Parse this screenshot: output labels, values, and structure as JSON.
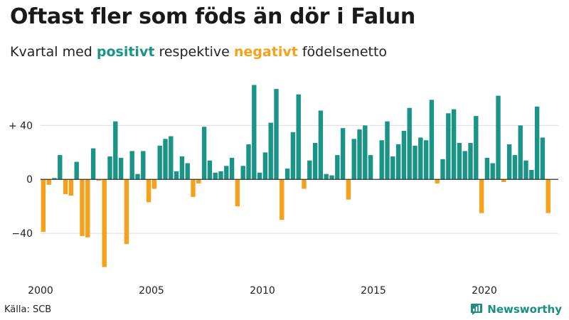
{
  "header": {
    "title": "Oftast fler som föds än dör i Falun",
    "subtitle_pre": "Kvartal med ",
    "subtitle_pos": "positivt",
    "subtitle_mid": " respektive ",
    "subtitle_neg": "negativt",
    "subtitle_post": " födelsenetto"
  },
  "footer": {
    "source": "Källa: SCB",
    "brand": "Newsworthy",
    "brand_icon": "bar-chart-speech-bubble-icon"
  },
  "colors": {
    "positive": "#1a9487",
    "negative": "#f5a11c",
    "grid": "#dddddd",
    "baseline": "#333333",
    "axis_text": "#222222"
  },
  "chart_data": {
    "type": "bar",
    "x_start": "2000-Q1",
    "frequency": "quarter",
    "ylim": [
      -70,
      75
    ],
    "yticks": [
      -40,
      0,
      40
    ],
    "ytick_labels": [
      "−40",
      "0",
      "+ 40"
    ],
    "xticks": [
      2000,
      2005,
      2010,
      2015,
      2020
    ],
    "xtick_labels": [
      "2000",
      "2005",
      "2010",
      "2015",
      "2020"
    ],
    "grid": true,
    "legend": "none",
    "series": [
      {
        "values": [
          -39,
          -4,
          1,
          18,
          -11,
          -12,
          13,
          -42,
          -43,
          23,
          -1,
          -65,
          17,
          43,
          16,
          -48,
          21,
          4,
          21,
          -17,
          -7,
          25,
          30,
          32,
          6,
          17,
          12,
          -13,
          -3,
          39,
          14,
          5,
          6,
          10,
          16,
          -20,
          10,
          26,
          70,
          5,
          20,
          42,
          67,
          -30,
          8,
          35,
          63,
          -7,
          14,
          27,
          51,
          4,
          3,
          18,
          38,
          -15,
          30,
          37,
          40,
          18,
          0,
          29,
          43,
          17,
          26,
          36,
          53,
          25,
          31,
          29,
          59,
          -3,
          15,
          49,
          52,
          27,
          21,
          27,
          47,
          -25,
          16,
          12,
          62,
          -2,
          26,
          18,
          40,
          14,
          7,
          54,
          31,
          -25
        ]
      }
    ]
  }
}
